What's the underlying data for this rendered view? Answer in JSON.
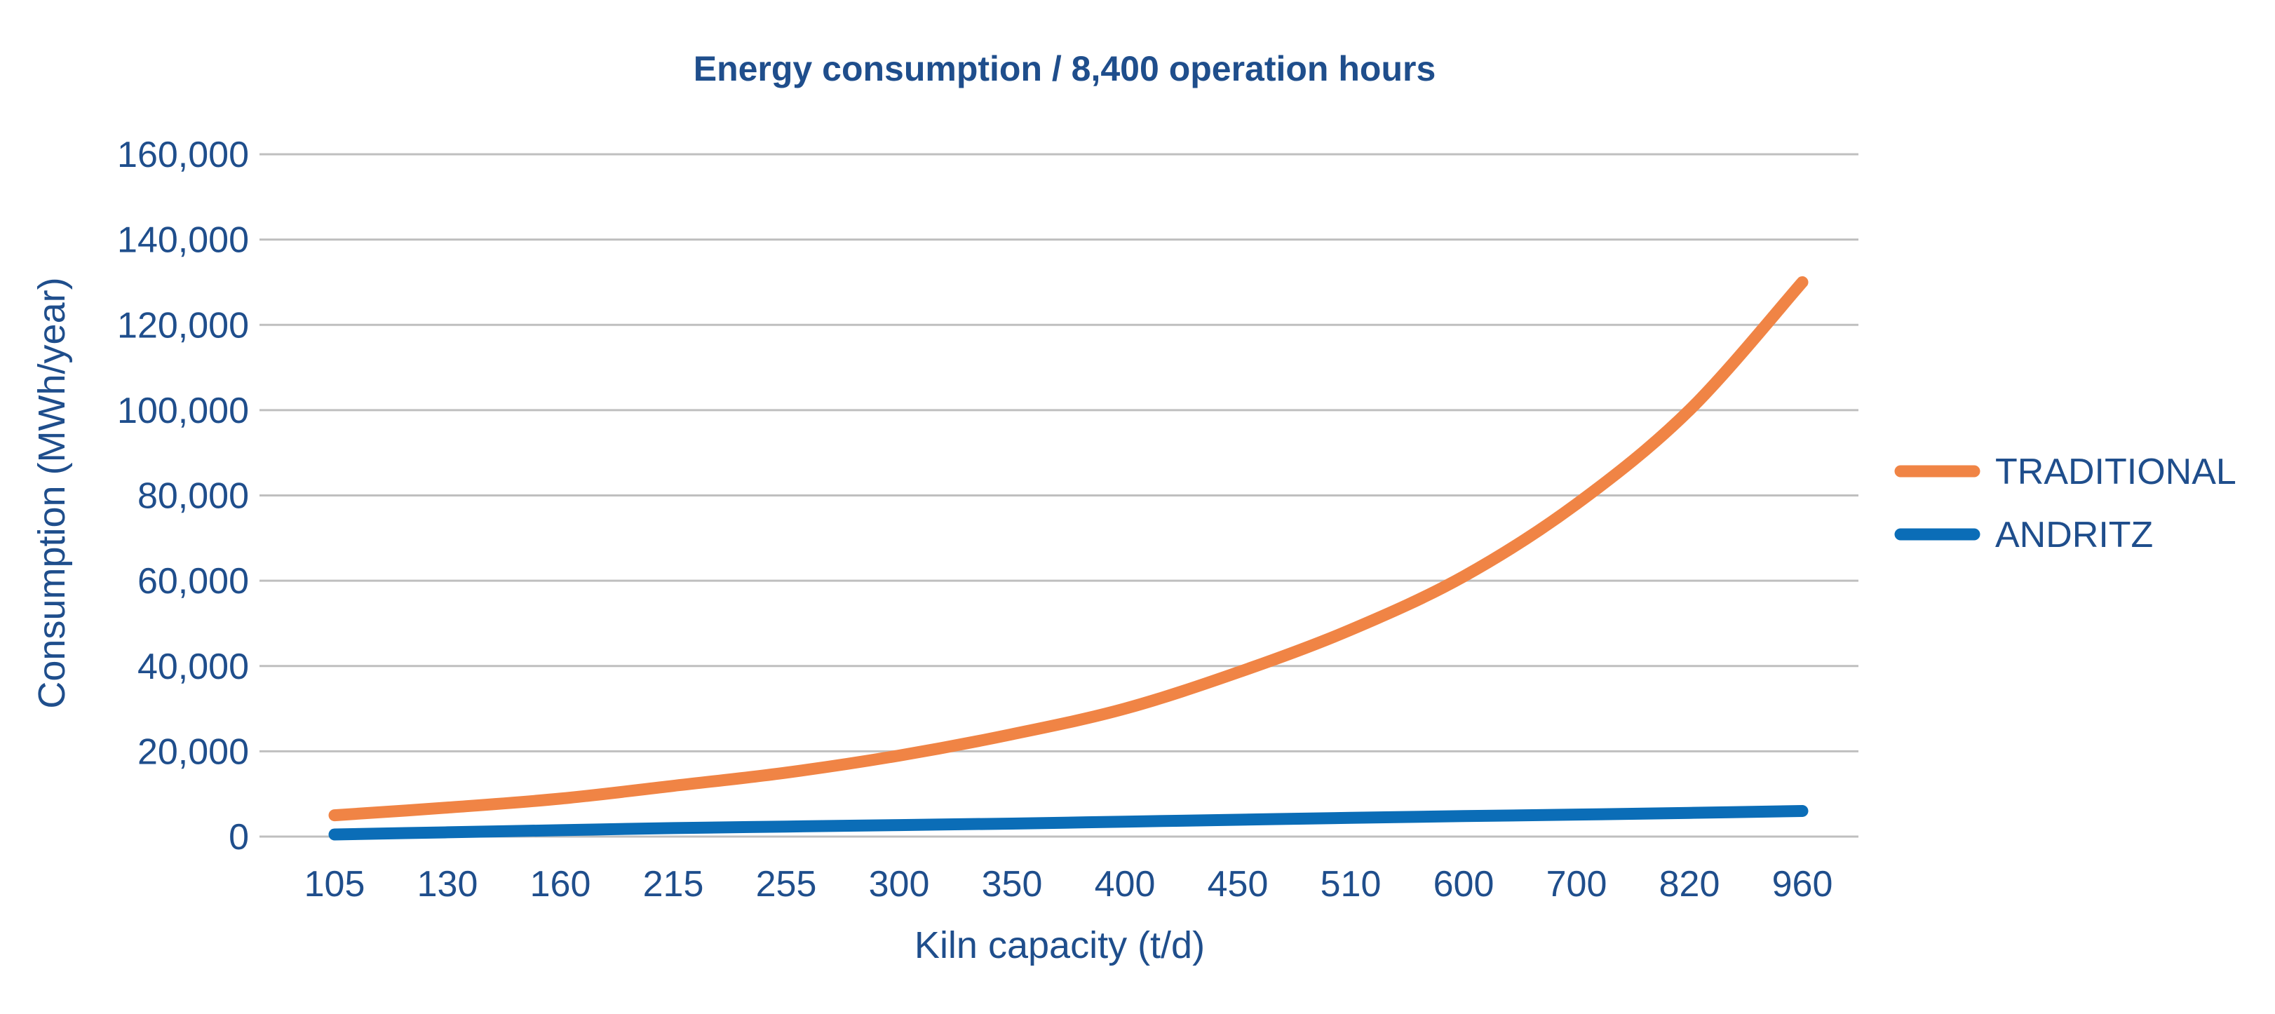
{
  "chart_data": {
    "type": "line",
    "title": "Energy consumption / 8,400 operation hours",
    "xlabel": "Kiln capacity (t/d)",
    "ylabel": "Consumption (MWh/year)",
    "ylim": [
      0,
      160000
    ],
    "yticks": [
      0,
      20000,
      40000,
      60000,
      80000,
      100000,
      120000,
      140000,
      160000
    ],
    "ytick_labels": [
      "0",
      "20,000",
      "40,000",
      "60,000",
      "80,000",
      "100,000",
      "120,000",
      "140,000",
      "160,000"
    ],
    "grid": true,
    "legend_position": "right",
    "categories": [
      "105",
      "130",
      "160",
      "215",
      "255",
      "300",
      "350",
      "400",
      "450",
      "510",
      "600",
      "700",
      "820",
      "960"
    ],
    "series": [
      {
        "name": "TRADITIONAL",
        "color": "#f08445",
        "values": [
          5000,
          6800,
          8900,
          11900,
          15000,
          19000,
          24000,
          30000,
          38500,
          48500,
          61000,
          78000,
          100000,
          130000
        ]
      },
      {
        "name": "ANDRITZ",
        "color": "#0b6db7",
        "values": [
          500,
          1000,
          1500,
          2000,
          2350,
          2700,
          3050,
          3500,
          3950,
          4400,
          4800,
          5150,
          5550,
          6000
        ]
      }
    ]
  }
}
